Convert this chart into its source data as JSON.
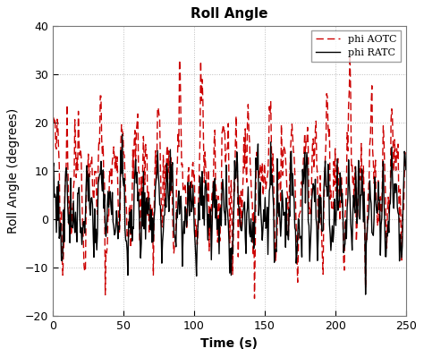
{
  "title": "Roll Angle",
  "xlabel": "Time (s)",
  "ylabel": "Roll Angle (degrees)",
  "xlim": [
    0,
    250
  ],
  "ylim": [
    -20,
    40
  ],
  "xticks": [
    0,
    50,
    100,
    150,
    200,
    250
  ],
  "yticks": [
    -20,
    -10,
    0,
    10,
    20,
    30,
    40
  ],
  "legend_labels": [
    "phi AOTC",
    "phi RATC"
  ],
  "aotc_color": "#cc0000",
  "ratc_color": "#000000",
  "bg_color": "#ffffff",
  "grid_color": "#aaaaaa",
  "seed": 42,
  "n_points": 500,
  "t_max": 250
}
